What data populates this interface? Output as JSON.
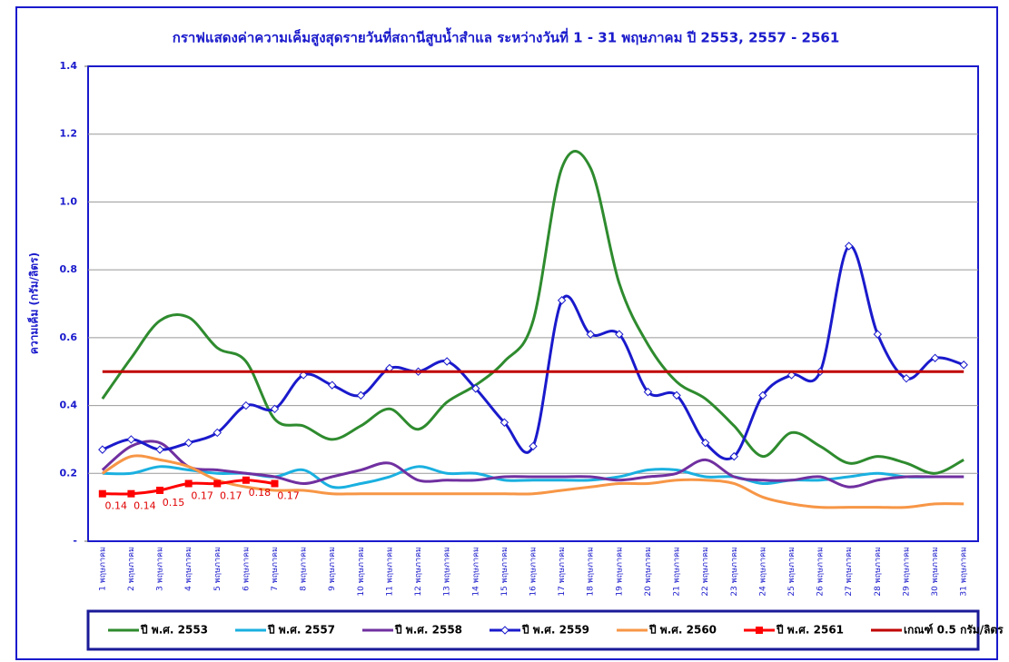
{
  "chart_data": {
    "type": "line",
    "title": "กราฟแสดงค่าความเค็มสูงสุดรายวันที่สถานีสูบน้ำสำแล ระหว่างวันที่ 1 - 31 พฤษภาคม ปี 2553, 2557 - 2561",
    "y_label": "ความเค็ม (กรัม/ลิตร)",
    "categories": [
      "1 พฤษภาคม",
      "2 พฤษภาคม",
      "3 พฤษภาคม",
      "4 พฤษภาคม",
      "5 พฤษภาคม",
      "6 พฤษภาคม",
      "7 พฤษภาคม",
      "8 พฤษภาคม",
      "9 พฤษภาคม",
      "10 พฤษภาคม",
      "11 พฤษภาคม",
      "12 พฤษภาคม",
      "13 พฤษภาคม",
      "14 พฤษภาคม",
      "15 พฤษภาคม",
      "16 พฤษภาคม",
      "17 พฤษภาคม",
      "18 พฤษภาคม",
      "19 พฤษภาคม",
      "20 พฤษภาคม",
      "21 พฤษภาคม",
      "22 พฤษภาคม",
      "23 พฤษภาคม",
      "24 พฤษภาคม",
      "25 พฤษภาคม",
      "26 พฤษภาคม",
      "27 พฤษภาคม",
      "28 พฤษภาคม",
      "29 พฤษภาคม",
      "30 พฤษภาคม",
      "31 พฤษภาคม"
    ],
    "series": [
      {
        "name": "ปี พ.ศ. 2553",
        "color": "#2e8b2e",
        "values": [
          0.42,
          0.54,
          0.65,
          0.66,
          0.57,
          0.53,
          0.36,
          0.34,
          0.3,
          0.34,
          0.39,
          0.33,
          0.41,
          0.46,
          0.53,
          0.65,
          1.1,
          1.1,
          0.76,
          0.58,
          0.47,
          0.42,
          0.34,
          0.25,
          0.32,
          0.28,
          0.23,
          0.25,
          0.23,
          0.2,
          0.24
        ]
      },
      {
        "name": "ปี พ.ศ. 2557",
        "color": "#1ab0e0",
        "values": [
          0.2,
          0.2,
          0.22,
          0.21,
          0.2,
          0.2,
          0.19,
          0.21,
          0.16,
          0.17,
          0.19,
          0.22,
          0.2,
          0.2,
          0.18,
          0.18,
          0.18,
          0.18,
          0.19,
          0.21,
          0.21,
          0.19,
          0.19,
          0.17,
          0.18,
          0.18,
          0.19,
          0.2,
          0.19,
          0.19,
          0.19
        ]
      },
      {
        "name": "ปี พ.ศ. 2558",
        "color": "#7030a0",
        "values": [
          0.21,
          0.28,
          0.29,
          0.22,
          0.21,
          0.2,
          0.19,
          0.17,
          0.19,
          0.21,
          0.23,
          0.18,
          0.18,
          0.18,
          0.19,
          0.19,
          0.19,
          0.19,
          0.18,
          0.19,
          0.2,
          0.24,
          0.19,
          0.18,
          0.18,
          0.19,
          0.16,
          0.18,
          0.19,
          0.19,
          0.19
        ]
      },
      {
        "name": "ปี พ.ศ. 2559",
        "color": "#1a1acc",
        "marker": "diamond",
        "values": [
          0.27,
          0.3,
          0.27,
          0.29,
          0.32,
          0.4,
          0.39,
          0.49,
          0.46,
          0.43,
          0.51,
          0.5,
          0.53,
          0.45,
          0.35,
          0.28,
          0.71,
          0.61,
          0.61,
          0.44,
          0.43,
          0.29,
          0.25,
          0.43,
          0.49,
          0.5,
          0.87,
          0.61,
          0.48,
          0.54,
          0.52
        ]
      },
      {
        "name": "ปี พ.ศ. 2560",
        "color": "#f79646",
        "values": [
          0.2,
          0.25,
          0.24,
          0.22,
          0.18,
          0.16,
          0.15,
          0.15,
          0.14,
          0.14,
          0.14,
          0.14,
          0.14,
          0.14,
          0.14,
          0.14,
          0.15,
          0.16,
          0.17,
          0.17,
          0.18,
          0.18,
          0.17,
          0.13,
          0.11,
          0.1,
          0.1,
          0.1,
          0.1,
          0.11,
          0.11
        ]
      },
      {
        "name": "ปี พ.ศ. 2561",
        "color": "#ff0000",
        "marker": "square",
        "data_labels": true,
        "values": [
          0.14,
          0.14,
          0.15,
          0.17,
          0.17,
          0.18,
          0.17,
          null,
          null,
          null,
          null,
          null,
          null,
          null,
          null,
          null,
          null,
          null,
          null,
          null,
          null,
          null,
          null,
          null,
          null,
          null,
          null,
          null,
          null,
          null,
          null
        ]
      },
      {
        "name": "เกณฑ์ 0.5 กรัม/ลิตร",
        "color": "#c00000",
        "values": [
          0.5,
          0.5,
          0.5,
          0.5,
          0.5,
          0.5,
          0.5,
          0.5,
          0.5,
          0.5,
          0.5,
          0.5,
          0.5,
          0.5,
          0.5,
          0.5,
          0.5,
          0.5,
          0.5,
          0.5,
          0.5,
          0.5,
          0.5,
          0.5,
          0.5,
          0.5,
          0.5,
          0.5,
          0.5,
          0.5,
          0.5
        ]
      }
    ],
    "ylim": [
      0,
      1.4
    ],
    "yticks": [
      {
        "value": 0,
        "label": "-"
      },
      0.2,
      0.4,
      0.6,
      0.8,
      {
        "value": 1,
        "label": "1.0"
      },
      1.2,
      1.4
    ],
    "grid": true,
    "smooth": true,
    "legend": "bottom"
  }
}
